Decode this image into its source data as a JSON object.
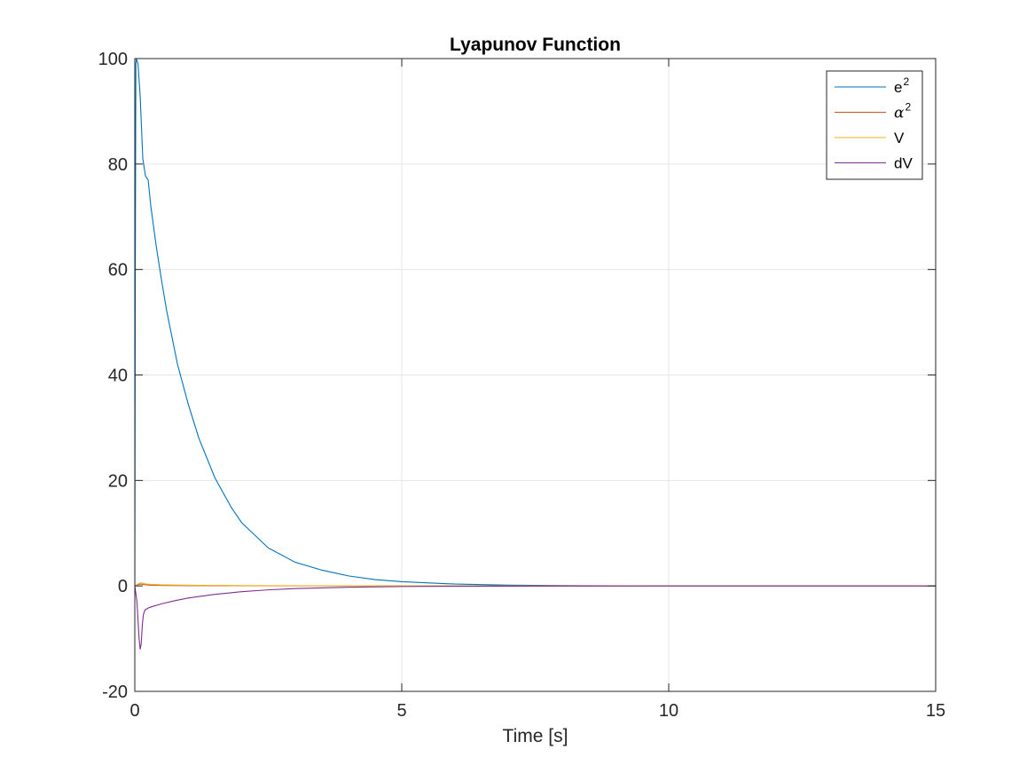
{
  "chart_data": {
    "type": "line",
    "title": "Lyapunov Function",
    "xlabel": "Time [s]",
    "ylabel": "",
    "xlim": [
      0,
      15
    ],
    "ylim": [
      -20,
      100
    ],
    "xticks": [
      0,
      5,
      10,
      15
    ],
    "yticks": [
      -20,
      0,
      20,
      40,
      60,
      80,
      100
    ],
    "xtick_labels": [
      "0",
      "5",
      "10",
      "15"
    ],
    "ytick_labels": [
      "-20",
      "0",
      "20",
      "40",
      "60",
      "80",
      "100"
    ],
    "grid": true,
    "legend_position": "top-right",
    "series": [
      {
        "name": "e",
        "name_superscript": "2",
        "color": "#0072BD",
        "x": [
          0,
          0.01,
          0.02,
          0.03,
          0.06,
          0.1,
          0.15,
          0.2,
          0.25,
          0.3,
          0.4,
          0.5,
          0.6,
          0.8,
          1.0,
          1.2,
          1.5,
          1.8,
          2.0,
          2.5,
          3.0,
          3.5,
          4.0,
          4.5,
          5.0,
          6.0,
          7.0,
          8.0,
          9.0,
          10.0,
          11.0,
          12.0,
          13.0,
          14.0,
          15.0
        ],
        "y": [
          0,
          62,
          99,
          100,
          99,
          93,
          81,
          77.7,
          77,
          72,
          64.5,
          58,
          52,
          42,
          34.5,
          28,
          20.5,
          15,
          12,
          7.2,
          4.5,
          3,
          1.9,
          1.2,
          0.8,
          0.35,
          0.15,
          0.07,
          0.03,
          0.015,
          0.007,
          0.003,
          0.002,
          0.001,
          0
        ]
      },
      {
        "name": "α",
        "name_superscript": "2",
        "color": "#D95319",
        "x": [
          0,
          0.05,
          0.1,
          0.15,
          0.2,
          0.3,
          0.5,
          1.0,
          2.0,
          3.0,
          5.0,
          8.0,
          11.0,
          15.0
        ],
        "y": [
          0,
          0.2,
          0.35,
          0.3,
          0.22,
          0.15,
          0.1,
          0.06,
          0.03,
          0.015,
          0.005,
          0.001,
          0,
          0
        ]
      },
      {
        "name": "V",
        "name_superscript": "",
        "color": "#EDB120",
        "x": [
          0,
          0.05,
          0.1,
          0.15,
          0.2,
          0.3,
          0.5,
          1.0,
          2.0,
          3.0,
          5.0,
          8.0,
          11.0,
          15.0
        ],
        "y": [
          0,
          0.3,
          0.55,
          0.5,
          0.38,
          0.3,
          0.2,
          0.12,
          0.06,
          0.03,
          0.01,
          0.002,
          0,
          0
        ]
      },
      {
        "name": "dV",
        "name_superscript": "",
        "color": "#7E2F8E",
        "x": [
          0,
          0.04,
          0.08,
          0.1,
          0.12,
          0.14,
          0.16,
          0.18,
          0.2,
          0.25,
          0.3,
          0.5,
          0.75,
          1.0,
          1.5,
          2.0,
          2.5,
          3.0,
          4.0,
          5.0,
          6.0,
          8.0,
          10.0,
          15.0
        ],
        "y": [
          0,
          -3,
          -10,
          -12,
          -11,
          -7.5,
          -5.5,
          -4.8,
          -4.5,
          -4.2,
          -4,
          -3.4,
          -2.8,
          -2.3,
          -1.6,
          -1.1,
          -0.75,
          -0.5,
          -0.25,
          -0.12,
          -0.06,
          -0.02,
          -0.005,
          0
        ]
      }
    ]
  }
}
